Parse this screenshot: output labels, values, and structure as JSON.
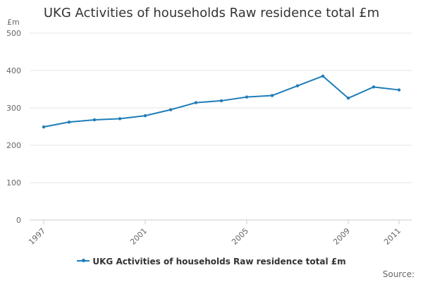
{
  "chart_data": {
    "type": "line",
    "title": "UKG Activities of households Raw residence total £m",
    "ylabel": "£m",
    "xlabel": "",
    "x": [
      1997,
      1998,
      1999,
      2000,
      2001,
      2002,
      2003,
      2004,
      2005,
      2006,
      2007,
      2008,
      2009,
      2010,
      2011
    ],
    "x_tick_labels": [
      "1997",
      "2001",
      "2005",
      "2009",
      "2011"
    ],
    "ylim": [
      0,
      500
    ],
    "y_ticks": [
      0,
      100,
      200,
      300,
      400,
      500
    ],
    "grid": true,
    "legend_position": "bottom-center",
    "series": [
      {
        "name": "UKG Activities of households Raw residence total £m",
        "color": "#1f7db8",
        "values": [
          249,
          262,
          268,
          271,
          279,
          295,
          314,
          319,
          329,
          333,
          359,
          385,
          326,
          356,
          348
        ]
      }
    ]
  },
  "source_label": "Source:"
}
